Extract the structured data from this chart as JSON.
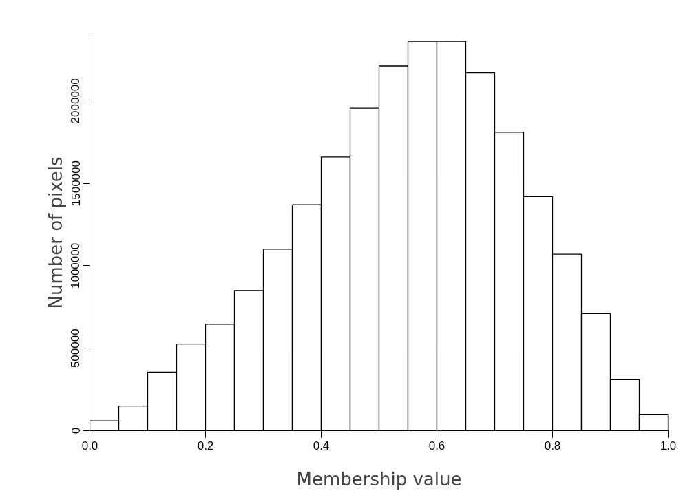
{
  "chart_data": {
    "type": "histogram",
    "xlabel": "Membership value",
    "ylabel": "Number of pixels",
    "bins": [
      0.0,
      0.05,
      0.1,
      0.15,
      0.2,
      0.25,
      0.3,
      0.35,
      0.4,
      0.45,
      0.5,
      0.55,
      0.6,
      0.65,
      0.7,
      0.75,
      0.8,
      0.85,
      0.9,
      0.95,
      1.0
    ],
    "values": [
      60000,
      150000,
      355000,
      525000,
      645000,
      850000,
      1100000,
      1370000,
      1660000,
      1955000,
      2210000,
      2360000,
      2360000,
      2170000,
      1810000,
      1420000,
      1070000,
      710000,
      310000,
      100000
    ],
    "color": "#ffffff",
    "xlim": [
      0,
      1
    ],
    "ylim": [
      0,
      2400000
    ],
    "xticks": [
      {
        "value": 0,
        "label": "0.0"
      },
      {
        "value": 0.2,
        "label": "0.2"
      },
      {
        "value": 0.4,
        "label": "0.4"
      },
      {
        "value": 0.6,
        "label": "0.6"
      },
      {
        "value": 0.8,
        "label": "0.8"
      },
      {
        "value": 1,
        "label": "1.0"
      }
    ],
    "yticks": [
      0,
      500000,
      1000000,
      1500000,
      2000000
    ],
    "grid": false
  }
}
